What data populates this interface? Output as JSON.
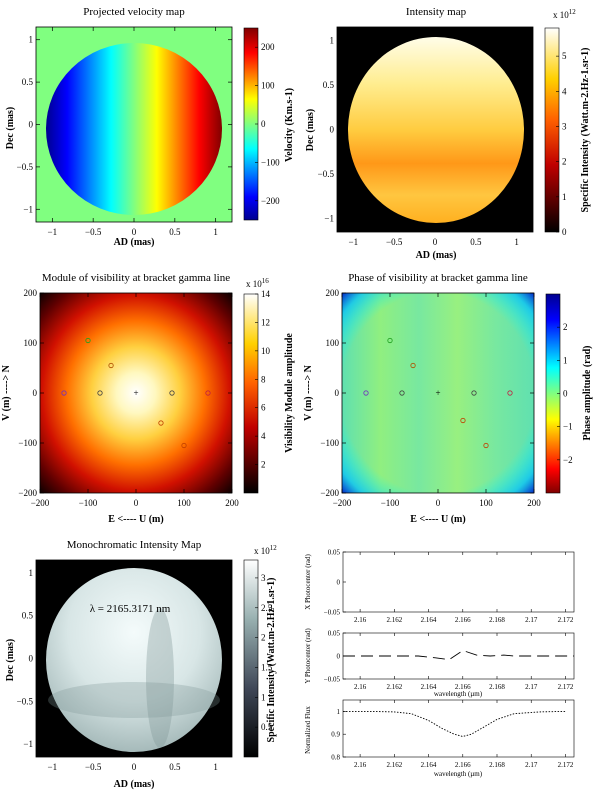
{
  "colors": {
    "background": "#ffffff",
    "disk_outside": "#80ff80",
    "ann_outside": "#000000"
  },
  "chart_data": [
    {
      "id": "velocity",
      "type": "heatmap",
      "title": "Projected velocity map",
      "xlabel": "AD (mas)",
      "ylabel": "Dec (mas)",
      "xlim": [
        -1.2,
        1.2
      ],
      "ylim": [
        -1.15,
        1.15
      ],
      "xticks": [
        -1,
        -0.5,
        0,
        0.5,
        1
      ],
      "yticks": [
        -1,
        -0.5,
        0,
        0.5,
        1
      ],
      "colorbar": {
        "label": "Velocity (Km.s-1)",
        "range": [
          -250,
          250
        ],
        "ticks": [
          -200,
          -100,
          0,
          100,
          200
        ]
      }
    },
    {
      "id": "intensity",
      "type": "heatmap",
      "title": "Intensity map",
      "xlabel": "AD (mas)",
      "ylabel": "Dec (mas)",
      "xlim": [
        -1.2,
        1.2
      ],
      "ylim": [
        -1.15,
        1.15
      ],
      "xticks": [
        -1,
        -0.5,
        0,
        0.5,
        1
      ],
      "yticks": [
        -1,
        -0.5,
        0,
        0.5,
        1
      ],
      "colorbar": {
        "label": "Specific Intensity (Watt.m-2.Hz-1.sr-1)",
        "range": [
          0,
          5.8
        ],
        "ticks": [
          0,
          1,
          2,
          3,
          4,
          5
        ],
        "exponent": "x 10",
        "exponent_power": "12"
      }
    },
    {
      "id": "vis_module",
      "type": "heatmap",
      "title": "Module of visibility at bracket gamma line",
      "xlabel": "E <---- U (m)",
      "ylabel": "V (m) ----> N",
      "xlim": [
        -200,
        200
      ],
      "ylim": [
        -200,
        200
      ],
      "xticks": [
        -200,
        -100,
        0,
        100,
        200
      ],
      "yticks": [
        -200,
        -100,
        0,
        100,
        200
      ],
      "colorbar": {
        "label": "Visibility Module amplitude",
        "range": [
          0,
          14
        ],
        "ticks": [
          2,
          4,
          6,
          8,
          10,
          12,
          14
        ],
        "exponent": "x 10",
        "exponent_power": "16"
      },
      "uv_points": [
        [
          -100,
          105
        ],
        [
          -52,
          55
        ],
        [
          -150,
          0
        ],
        [
          -75,
          0
        ],
        [
          0,
          0
        ],
        [
          75,
          0
        ],
        [
          150,
          0
        ],
        [
          52,
          -60
        ],
        [
          100,
          -105
        ]
      ]
    },
    {
      "id": "vis_phase",
      "type": "heatmap",
      "title": "Phase of visibility at bracket gamma line",
      "xlabel": "E <---- U (m)",
      "ylabel": "V (m) ----> N",
      "xlim": [
        -200,
        200
      ],
      "ylim": [
        -200,
        200
      ],
      "xticks": [
        -200,
        -100,
        0,
        100,
        200
      ],
      "yticks": [
        -200,
        -100,
        0,
        100,
        200
      ],
      "colorbar": {
        "label": "Phase amplitude (rad)",
        "range": [
          -3,
          3
        ],
        "ticks": [
          -2,
          -1,
          0,
          1,
          2
        ]
      },
      "uv_points": [
        [
          -100,
          105
        ],
        [
          -52,
          55
        ],
        [
          -150,
          0
        ],
        [
          -75,
          0
        ],
        [
          0,
          0
        ],
        [
          75,
          0
        ],
        [
          150,
          0
        ],
        [
          52,
          -55
        ],
        [
          100,
          -105
        ]
      ]
    },
    {
      "id": "mono",
      "type": "heatmap",
      "title": "Monochromatic Intensity Map",
      "annotation": "λ = 2165.3171 nm",
      "xlabel": "AD (mas)",
      "ylabel": "Dec (mas)",
      "xlim": [
        -1.2,
        1.2
      ],
      "ylim": [
        -1.15,
        1.15
      ],
      "xticks": [
        -1,
        -0.5,
        0,
        0.5,
        1
      ],
      "yticks": [
        -1,
        -0.5,
        0,
        0.5,
        1
      ],
      "colorbar": {
        "label": "Specific Intensity (Watt.m-2.Hz-1.sr-1)",
        "range": [
          0,
          3.3
        ],
        "ticks": [
          0.5,
          1,
          1.5,
          2,
          2.5,
          3
        ],
        "exponent": "x 10",
        "exponent_power": "12"
      }
    },
    {
      "id": "diff_phot",
      "type": "line",
      "ylabel": "X Photocenter (rad)",
      "xlabel": "wavelength (µm)",
      "xlim": [
        2.159,
        2.1725
      ],
      "ylim": [
        -0.05,
        0.05
      ],
      "xticks": [
        2.16,
        2.162,
        2.164,
        2.166,
        2.168,
        2.17,
        2.172
      ],
      "yticks": [
        -0.05,
        0,
        0.05
      ],
      "x": [],
      "y": []
    },
    {
      "id": "diff_phase",
      "type": "line",
      "ylabel": "Y Photocenter (rad)",
      "xlabel": "wavelength (µm)",
      "xlim": [
        2.159,
        2.1725
      ],
      "ylim": [
        -0.05,
        0.05
      ],
      "xticks": [
        2.16,
        2.162,
        2.164,
        2.166,
        2.168,
        2.17,
        2.172
      ],
      "yticks": [
        -0.05,
        0,
        0.05
      ],
      "x": [
        2.159,
        2.1605,
        2.162,
        2.1634,
        2.1644,
        2.1652,
        2.166,
        2.1668,
        2.1676,
        2.1684,
        2.169,
        2.1715,
        2.1725
      ],
      "y": [
        0,
        0,
        0,
        0,
        -0.004,
        -0.008,
        0.012,
        0.002,
        0,
        0.002,
        0,
        0,
        0
      ]
    },
    {
      "id": "norm_flux",
      "type": "line",
      "ylabel": "Normalized Flux",
      "xlabel": "wavelength (µm)",
      "xlim": [
        2.159,
        2.1725
      ],
      "ylim": [
        0.8,
        1.05
      ],
      "xticks": [
        2.16,
        2.162,
        2.164,
        2.166,
        2.168,
        2.17,
        2.172
      ],
      "yticks": [
        0.8,
        0.9,
        1
      ],
      "x": [
        2.159,
        2.1605,
        2.162,
        2.163,
        2.164,
        2.1648,
        2.1655,
        2.166,
        2.1665,
        2.1672,
        2.168,
        2.169,
        2.1705,
        2.172
      ],
      "y": [
        1,
        1,
        0.998,
        0.99,
        0.96,
        0.925,
        0.9,
        0.89,
        0.9,
        0.93,
        0.965,
        0.99,
        0.998,
        1
      ]
    }
  ]
}
